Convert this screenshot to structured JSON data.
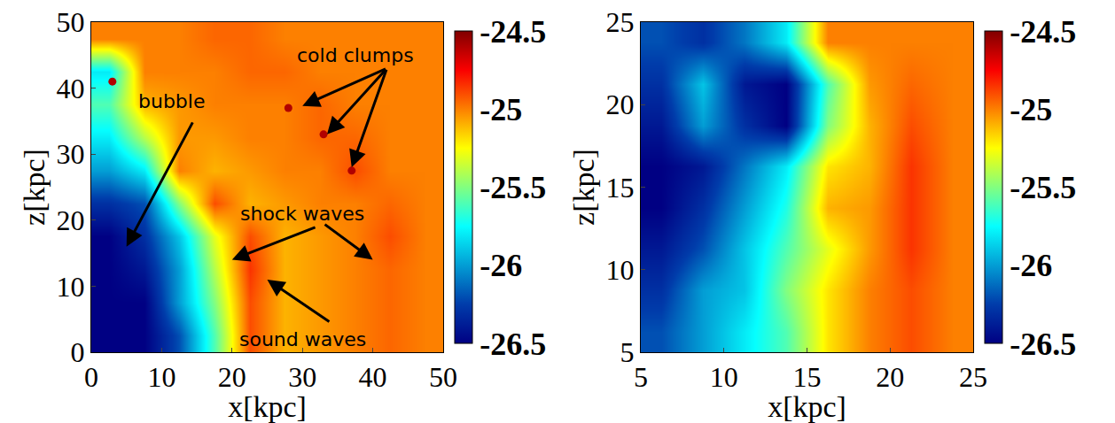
{
  "chart_data": [
    {
      "type": "heatmap",
      "color": "Jet",
      "xlabel": "x[kpc]",
      "ylabel": "z[kpc]",
      "x": [
        2.5,
        7.5,
        12.5,
        17.5,
        22.5,
        27.5,
        32.5,
        37.5,
        42.5,
        47.5
      ],
      "y": [
        2.5,
        7.5,
        12.5,
        17.5,
        22.5,
        27.5,
        32.5,
        37.5,
        42.5,
        47.5
      ],
      "z": [
        [
          -26.5,
          -26.5,
          -26.2,
          -25.6,
          -24.9,
          -25.1,
          -25.05,
          -25.0,
          -24.95,
          -25.0
        ],
        [
          -26.5,
          -26.5,
          -26.0,
          -25.5,
          -24.9,
          -25.1,
          -25.05,
          -25.0,
          -24.95,
          -25.0
        ],
        [
          -26.5,
          -26.4,
          -26.0,
          -25.4,
          -24.85,
          -25.1,
          -25.05,
          -25.0,
          -24.95,
          -25.0
        ],
        [
          -26.5,
          -26.3,
          -25.9,
          -25.3,
          -24.9,
          -25.1,
          -25.05,
          -25.0,
          -24.9,
          -25.0
        ],
        [
          -26.3,
          -26.2,
          -25.5,
          -24.9,
          -25.1,
          -25.05,
          -25.0,
          -25.0,
          -24.95,
          -25.0
        ],
        [
          -26.0,
          -25.8,
          -25.0,
          -25.1,
          -25.05,
          -25.0,
          -25.0,
          -24.9,
          -25.0,
          -25.0
        ],
        [
          -25.8,
          -25.4,
          -25.05,
          -25.05,
          -25.0,
          -25.0,
          -24.95,
          -24.95,
          -25.0,
          -25.0
        ],
        [
          -25.6,
          -25.1,
          -25.05,
          -25.0,
          -25.0,
          -25.0,
          -24.95,
          -25.0,
          -25.0,
          -25.0
        ],
        [
          -25.8,
          -25.0,
          -25.0,
          -25.0,
          -24.95,
          -24.95,
          -25.0,
          -25.0,
          -25.0,
          -25.0
        ],
        [
          -25.0,
          -25.0,
          -25.0,
          -24.95,
          -24.95,
          -25.0,
          -25.0,
          -25.0,
          -25.0,
          -25.0
        ]
      ],
      "clumps": {
        "x": [
          28,
          33,
          37,
          3
        ],
        "y": [
          37,
          33,
          27.5,
          41
        ],
        "values": [
          -24.6,
          -24.6,
          -24.6,
          -24.6
        ]
      },
      "xlim": [
        0,
        50
      ],
      "ylim": [
        0,
        50
      ],
      "xticks": [
        0,
        10,
        20,
        30,
        40,
        50
      ],
      "yticks": [
        0,
        10,
        20,
        30,
        40,
        50
      ],
      "colorbar": {
        "range": [
          -26.5,
          -24.5
        ],
        "ticks": [
          -26.5,
          -26,
          -25.5,
          -25,
          -24.5
        ]
      },
      "annotations": [
        {
          "text": "cold clumps",
          "x": 37.5,
          "y": 45,
          "arrows": [
            {
              "x": 30,
              "y": 37.3,
              "ax": 42,
              "ay": 43
            },
            {
              "x": 33.5,
              "y": 33,
              "ax": 42,
              "ay": 43
            },
            {
              "x": 37,
              "y": 28,
              "ax": 42,
              "ay": 43
            }
          ]
        },
        {
          "text": "bubble",
          "x": 11.5,
          "y": 38,
          "arrows": [
            {
              "x": 5,
              "y": 16,
              "ax": 14.5,
              "ay": 35
            }
          ]
        },
        {
          "text": "shock waves",
          "x": 30,
          "y": 21,
          "arrows": [
            {
              "x": 20,
              "y": 14,
              "ax": 32,
              "ay": 19
            },
            {
              "x": 40,
              "y": 14,
              "ax": 33,
              "ay": 19.5
            }
          ]
        },
        {
          "text": "sound waves",
          "x": 30,
          "y": 2,
          "arrows": [
            {
              "x": 25,
              "y": 11,
              "ax": 34,
              "ay": 4.5
            }
          ]
        }
      ]
    },
    {
      "type": "heatmap",
      "color": "Jet",
      "xlabel": "x[kpc]",
      "ylabel": "z[kpc]",
      "x": [
        6.25,
        8.75,
        11.25,
        13.75,
        16.25,
        18.75,
        21.25,
        23.75
      ],
      "y": [
        6.25,
        8.75,
        11.25,
        13.75,
        16.25,
        18.75,
        21.25,
        23.75
      ],
      "z": [
        [
          -26.2,
          -26.0,
          -25.8,
          -25.6,
          -25.2,
          -25.0,
          -24.9,
          -25.0
        ],
        [
          -26.3,
          -26.0,
          -25.9,
          -25.5,
          -25.2,
          -25.0,
          -24.9,
          -25.0
        ],
        [
          -26.4,
          -26.2,
          -25.9,
          -25.6,
          -25.3,
          -25.05,
          -24.85,
          -25.0
        ],
        [
          -26.5,
          -26.3,
          -26.0,
          -25.7,
          -25.1,
          -25.05,
          -24.85,
          -25.0
        ],
        [
          -26.5,
          -26.4,
          -26.1,
          -25.8,
          -25.2,
          -25.1,
          -24.85,
          -25.0
        ],
        [
          -26.4,
          -26.0,
          -26.3,
          -26.5,
          -25.5,
          -25.1,
          -24.9,
          -25.0
        ],
        [
          -26.3,
          -25.9,
          -26.4,
          -26.5,
          -25.6,
          -25.05,
          -24.95,
          -25.0
        ],
        [
          -26.2,
          -26.3,
          -26.1,
          -25.8,
          -25.0,
          -25.0,
          -25.0,
          -25.0
        ]
      ],
      "xlim": [
        5,
        25
      ],
      "ylim": [
        5,
        25
      ],
      "xticks": [
        5,
        10,
        15,
        20,
        25
      ],
      "yticks": [
        5,
        10,
        15,
        20,
        25
      ],
      "colorbar": {
        "range": [
          -26.5,
          -24.5
        ],
        "ticks": [
          -26.5,
          -26,
          -25.5,
          -25,
          -24.5
        ]
      }
    }
  ]
}
